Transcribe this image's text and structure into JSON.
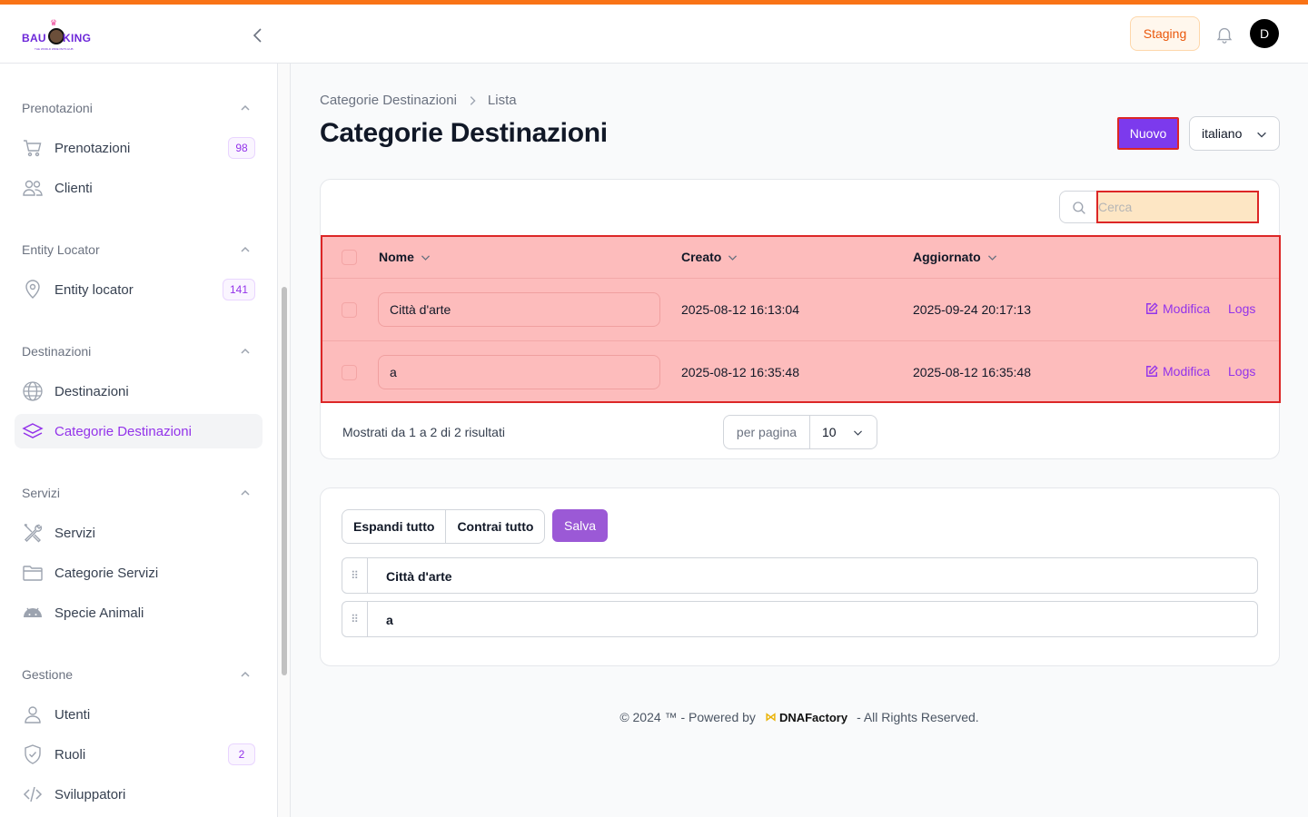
{
  "header": {
    "logo_left": "BAU",
    "logo_right": "KING",
    "logo_tagline": "THE WORLD WIDE PETS HUB",
    "env_badge": "Staging",
    "user_initial": "D"
  },
  "sidebar": {
    "groups": [
      {
        "label": "Prenotazioni",
        "items": [
          {
            "label": "Prenotazioni",
            "icon": "cart-icon",
            "badge": "98"
          },
          {
            "label": "Clienti",
            "icon": "users-icon",
            "badge": ""
          }
        ]
      },
      {
        "label": "Entity Locator",
        "items": [
          {
            "label": "Entity locator",
            "icon": "map-pin-icon",
            "badge": "141"
          }
        ]
      },
      {
        "label": "Destinazioni",
        "items": [
          {
            "label": "Destinazioni",
            "icon": "globe-icon",
            "badge": ""
          },
          {
            "label": "Categorie Destinazioni",
            "icon": "layers-icon",
            "badge": "",
            "active": true
          }
        ]
      },
      {
        "label": "Servizi",
        "items": [
          {
            "label": "Servizi",
            "icon": "tools-icon",
            "badge": ""
          },
          {
            "label": "Categorie Servizi",
            "icon": "folder-icon",
            "badge": ""
          },
          {
            "label": "Specie Animali",
            "icon": "android-icon",
            "badge": ""
          }
        ]
      },
      {
        "label": "Gestione",
        "items": [
          {
            "label": "Utenti",
            "icon": "user-icon",
            "badge": ""
          },
          {
            "label": "Ruoli",
            "icon": "shield-check-icon",
            "badge": "2"
          },
          {
            "label": "Sviluppatori",
            "icon": "code-icon",
            "badge": ""
          }
        ]
      }
    ]
  },
  "breadcrumb": {
    "parent": "Categorie Destinazioni",
    "current": "Lista"
  },
  "page": {
    "title": "Categorie Destinazioni",
    "new_button": "Nuovo",
    "language": "italiano"
  },
  "table": {
    "search_placeholder": "Cerca",
    "columns": [
      "Nome",
      "Creato",
      "Aggiornato"
    ],
    "rows": [
      {
        "nome": "Città d'arte",
        "creato": "2025-08-12 16:13:04",
        "aggiornato": "2025-09-24 20:17:13",
        "edit": "Modifica",
        "logs": "Logs"
      },
      {
        "nome": "a",
        "creato": "2025-08-12 16:35:48",
        "aggiornato": "2025-08-12 16:35:48",
        "edit": "Modifica",
        "logs": "Logs"
      }
    ],
    "results_text": "Mostrati da 1 a 2 di 2 risultati",
    "per_page_label": "per pagina",
    "per_page_value": "10"
  },
  "tree": {
    "expand_all": "Espandi tutto",
    "collapse_all": "Contrai tutto",
    "save": "Salva",
    "items": [
      "Città d'arte",
      "a"
    ]
  },
  "footer": {
    "prefix": "© 2024 ™ - Powered by",
    "brand": "DNAFactory",
    "suffix": "- All Rights Reserved."
  },
  "colors": {
    "accent": "#9333ea",
    "stripe": "#f97316",
    "highlight_red": "#dc2626",
    "highlight_fill": "#fdbcbc"
  }
}
